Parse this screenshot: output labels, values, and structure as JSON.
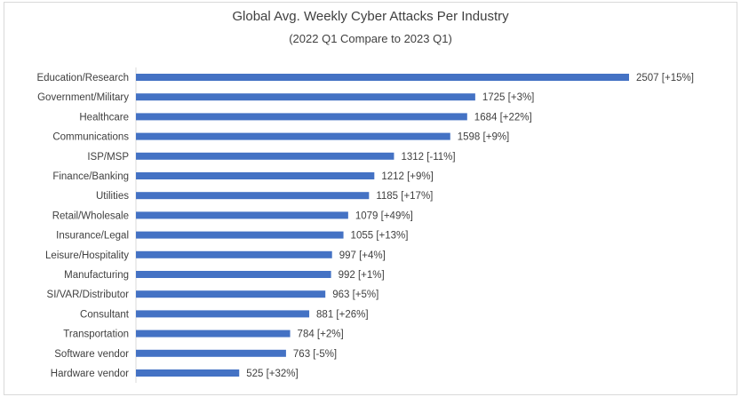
{
  "chart_data": {
    "type": "bar",
    "orientation": "horizontal",
    "title": "Global Avg. Weekly Cyber Attacks Per Industry",
    "subtitle": "(2022 Q1 Compare to 2023 Q1)",
    "xlabel": "",
    "ylabel": "",
    "xlim": [
      0,
      2750
    ],
    "grid": false,
    "legend": "none",
    "bar_color": "#4472c4",
    "categories": [
      "Education/Research",
      "Government/Military",
      "Healthcare",
      "Communications",
      "ISP/MSP",
      "Finance/Banking",
      "Utilities",
      "Retail/Wholesale",
      "Insurance/Legal",
      "Leisure/Hospitality",
      "Manufacturing",
      "SI/VAR/Distributor",
      "Consultant",
      "Transportation",
      "Software vendor",
      "Hardware vendor"
    ],
    "values": [
      2507,
      1725,
      1684,
      1598,
      1312,
      1212,
      1185,
      1079,
      1055,
      997,
      992,
      963,
      881,
      784,
      763,
      525
    ],
    "data_labels": [
      "2507 [+15%]",
      "1725 [+3%]",
      "1684 [+22%]",
      "1598 [+9%]",
      "1312 [-11%]",
      "1212 [+9%]",
      "1185 [+17%]",
      "1079 [+49%]",
      "1055 [+13%]",
      "997 [+4%]",
      "992 [+1%]",
      "963 [+5%]",
      "881 [+26%]",
      "784 [+2%]",
      "763 [-5%]",
      "525 [+32%]"
    ]
  }
}
